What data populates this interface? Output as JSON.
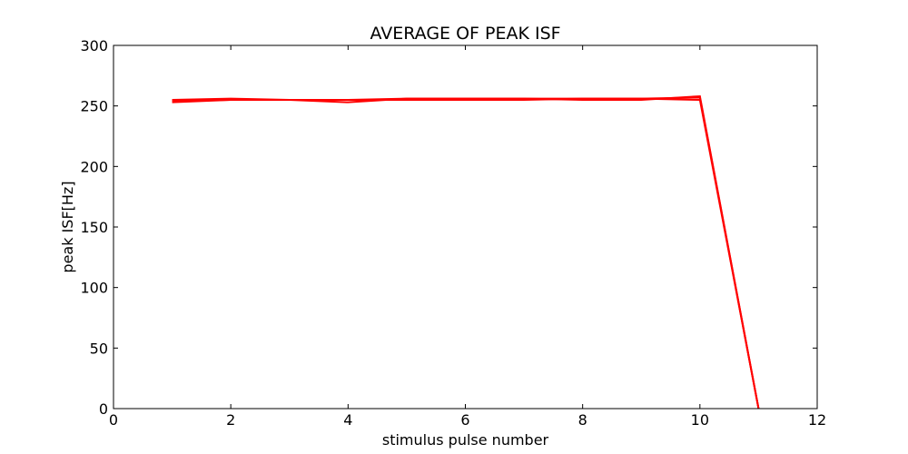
{
  "chart_data": {
    "type": "line",
    "title": "AVERAGE OF PEAK ISF",
    "xlabel": "stimulus pulse number",
    "ylabel": "peak ISF[Hz]",
    "xlim": [
      0,
      12
    ],
    "ylim": [
      0,
      300
    ],
    "xticks": [
      0,
      2,
      4,
      6,
      8,
      10,
      12
    ],
    "yticks": [
      0,
      50,
      100,
      150,
      200,
      250,
      300
    ],
    "grid": false,
    "line_color": "#ff0000",
    "series": [
      {
        "x": [
          1,
          2,
          3,
          4,
          5,
          6,
          7,
          8,
          9,
          10,
          11
        ],
        "values": [
          253,
          255,
          255,
          255,
          255,
          255,
          255,
          256,
          256,
          255,
          0
        ]
      },
      {
        "x": [
          1,
          2,
          3,
          4,
          5,
          6,
          7,
          8,
          9,
          10,
          11
        ],
        "values": [
          255,
          256,
          255,
          253,
          256,
          256,
          256,
          256,
          256,
          257,
          0
        ]
      },
      {
        "x": [
          1,
          2,
          3,
          4,
          5,
          6,
          7,
          8,
          9,
          10,
          11
        ],
        "values": [
          254,
          255,
          255,
          255,
          256,
          256,
          256,
          255,
          255,
          258,
          0
        ]
      }
    ]
  }
}
